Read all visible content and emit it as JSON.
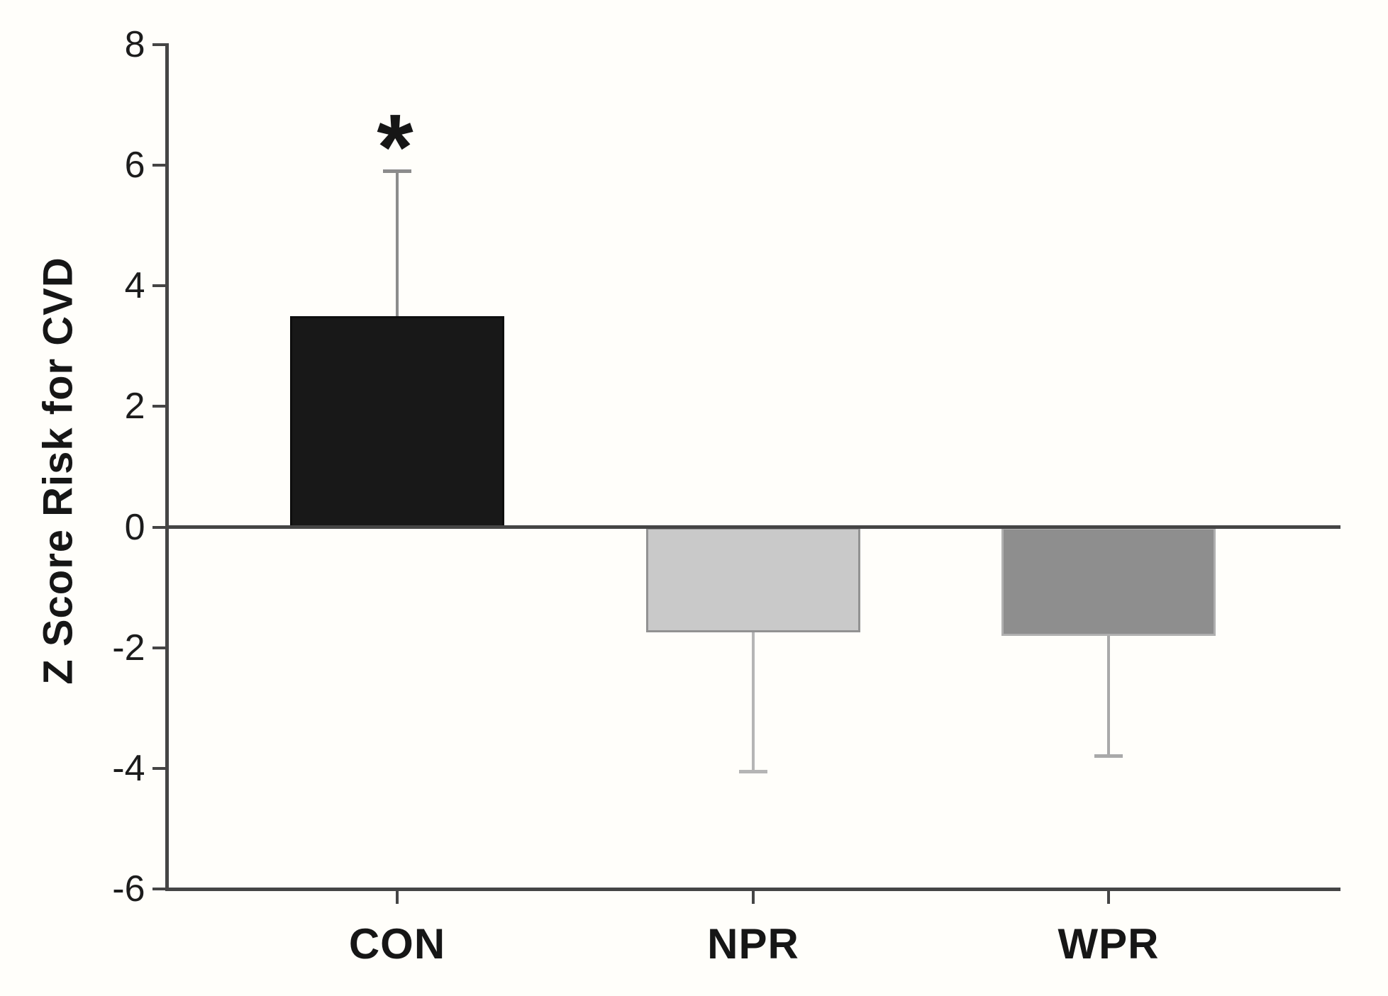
{
  "figure": {
    "background_color": "#fffefa",
    "axis_color": "#454545",
    "text_color": "#1c1c1c"
  },
  "chart_data": {
    "type": "bar",
    "title": "",
    "xlabel": "",
    "ylabel": "Z Score Risk for CVD",
    "categories": [
      "CON",
      "NPR",
      "WPR"
    ],
    "values": [
      3.5,
      -1.75,
      -1.8
    ],
    "errors": [
      2.4,
      2.3,
      2.0
    ],
    "error_bar_ends": [
      5.9,
      -4.05,
      -3.8
    ],
    "yticks": [
      8,
      6,
      4,
      2,
      0,
      -2,
      -4,
      -6
    ],
    "ylim": [
      -6,
      8
    ],
    "grid": false,
    "legend": null,
    "baseline": 0,
    "bar_fill_colors": [
      "#181818",
      "#c9c9c9",
      "#8e8e8e"
    ],
    "bar_border_colors": [
      "#0e0e0e",
      "#929292",
      "#b0b0b0"
    ],
    "error_bar_colors": [
      "#8c8c8c",
      "#b5b5b5",
      "#a9a9a9"
    ],
    "annotations": [
      {
        "text": "*",
        "category": "CON",
        "meaning": "significance-marker"
      }
    ]
  }
}
